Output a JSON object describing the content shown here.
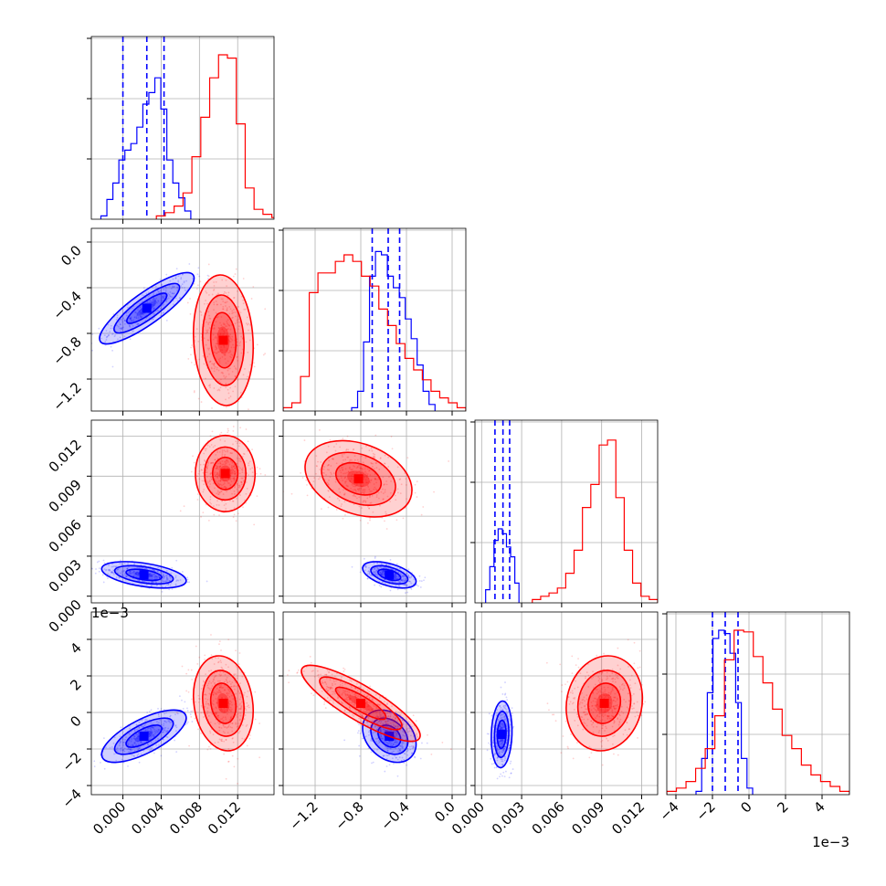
{
  "chart_data": {
    "type": "corner",
    "parameters": [
      {
        "ticks": [
          0.0,
          0.004,
          0.008,
          0.012
        ],
        "tick_labels": [
          "0.000",
          "0.004",
          "0.008",
          "0.012"
        ],
        "range": [
          -0.0033,
          0.0158
        ]
      },
      {
        "ticks": [
          -1.2,
          -0.8,
          -0.4,
          0.0
        ],
        "tick_labels": [
          "−1.2",
          "−0.8",
          "−0.4",
          "0.0"
        ],
        "range": [
          -1.48,
          0.12
        ]
      },
      {
        "ticks": [
          0.0,
          0.003,
          0.006,
          0.009,
          0.012
        ],
        "tick_labels": [
          "0.000",
          "0.003",
          "0.006",
          "0.009",
          "0.012"
        ],
        "range": [
          -0.0005,
          0.0132
        ]
      },
      {
        "ticks": [
          -4,
          -2,
          0,
          2,
          4
        ],
        "tick_labels": [
          "−4",
          "−2",
          "0",
          "2",
          "4"
        ],
        "range": [
          -4.5,
          5.5
        ],
        "offset_label": "1e−3"
      }
    ],
    "grid": true,
    "series": [
      {
        "color": "#0000ff",
        "quantiles": [
          [
            0.0,
            0.0025,
            0.0043
          ],
          [
            -0.7,
            -0.56,
            -0.46
          ],
          [
            0.001,
            0.0016,
            0.0021
          ],
          [
            -2.0,
            -1.3,
            -0.6
          ]
        ],
        "hist1d": [
          {
            "range": [
              -0.0023,
              0.0071
            ],
            "counts": [
              0.02,
              0.12,
              0.22,
              0.36,
              0.42,
              0.46,
              0.56,
              0.7,
              0.77,
              0.86,
              0.67,
              0.36,
              0.22,
              0.13,
              0.05
            ]
          },
          {
            "range": [
              -0.88,
              -0.15
            ],
            "counts": [
              0.02,
              0.12,
              0.42,
              0.82,
              0.97,
              0.95,
              0.82,
              0.75,
              0.69,
              0.56,
              0.44,
              0.28,
              0.12,
              0.04
            ]
          },
          {
            "range": [
              0.0003,
              0.0028
            ],
            "counts": [
              0.08,
              0.22,
              0.38,
              0.45,
              0.42,
              0.34,
              0.28,
              0.12
            ]
          },
          {
            "range": [
              -2.9,
              0.2
            ],
            "counts": [
              0.02,
              0.22,
              0.62,
              0.95,
              1.0,
              0.98,
              0.86,
              0.56,
              0.22,
              0.04
            ]
          }
        ],
        "blobs": [
          {
            "pair": [
              0,
              1
            ],
            "mean": [
              0.0025,
              -0.58
            ],
            "sd": [
              0.0019,
              0.12
            ],
            "rho": 0.85
          },
          {
            "pair": [
              0,
              2
            ],
            "mean": [
              0.0022,
              0.0016
            ],
            "sd": [
              0.0017,
              0.00038
            ],
            "rho": -0.45
          },
          {
            "pair": [
              0,
              3
            ],
            "mean": [
              0.0022,
              -1.3
            ],
            "sd": [
              0.0017,
              0.55
            ],
            "rho": 0.7
          },
          {
            "pair": [
              1,
              2
            ],
            "mean": [
              -0.55,
              0.0016
            ],
            "sd": [
              0.09,
              0.00038
            ],
            "rho": -0.5
          },
          {
            "pair": [
              1,
              3
            ],
            "mean": [
              -0.55,
              -1.3
            ],
            "sd": [
              0.09,
              0.55
            ],
            "rho": -0.3
          },
          {
            "pair": [
              2,
              3
            ],
            "mean": [
              0.0015,
              -1.2
            ],
            "sd": [
              0.0003,
              0.7
            ],
            "rho": 0.1
          }
        ]
      },
      {
        "color": "#ff0000",
        "hist1d": [
          {
            "range": [
              0.0035,
              0.0165
            ],
            "counts": [
              0.02,
              0.04,
              0.08,
              0.16,
              0.38,
              0.62,
              0.86,
              1.0,
              0.98,
              0.58,
              0.19,
              0.06,
              0.03,
              0.01
            ]
          },
          {
            "range": [
              -1.48,
              0.12
            ],
            "counts": [
              0.02,
              0.05,
              0.21,
              0.72,
              0.84,
              0.84,
              0.91,
              0.95,
              0.91,
              0.82,
              0.76,
              0.62,
              0.52,
              0.41,
              0.32,
              0.25,
              0.19,
              0.12,
              0.08,
              0.05,
              0.02
            ]
          },
          {
            "range": [
              0.0038,
              0.0132
            ],
            "counts": [
              0.02,
              0.04,
              0.06,
              0.09,
              0.18,
              0.32,
              0.58,
              0.72,
              0.96,
              0.99,
              0.64,
              0.32,
              0.12,
              0.04,
              0.02
            ]
          },
          {
            "range": [
              -4.5,
              5.5
            ],
            "counts": [
              0.02,
              0.04,
              0.08,
              0.16,
              0.28,
              0.48,
              0.82,
              1.0,
              0.99,
              0.84,
              0.68,
              0.52,
              0.36,
              0.28,
              0.18,
              0.12,
              0.08,
              0.05,
              0.02
            ]
          }
        ],
        "blobs": [
          {
            "pair": [
              0,
              1
            ],
            "mean": [
              0.0105,
              -0.86
            ],
            "sd": [
              0.0012,
              0.22
            ],
            "rho": -0.1
          },
          {
            "pair": [
              0,
              2
            ],
            "mean": [
              0.0107,
              0.0092
            ],
            "sd": [
              0.0012,
              0.0011
            ],
            "rho": 0.0
          },
          {
            "pair": [
              0,
              3
            ],
            "mean": [
              0.0105,
              0.5
            ],
            "sd": [
              0.0012,
              1.0
            ],
            "rho": -0.15
          },
          {
            "pair": [
              1,
              2
            ],
            "mean": [
              -0.82,
              0.0088
            ],
            "sd": [
              0.18,
              0.0011
            ],
            "rho": -0.3
          },
          {
            "pair": [
              1,
              3
            ],
            "mean": [
              -0.8,
              0.5
            ],
            "sd": [
              0.2,
              0.8
            ],
            "rho": -0.85
          },
          {
            "pair": [
              2,
              3
            ],
            "mean": [
              0.0092,
              0.5
            ],
            "sd": [
              0.0011,
              1.0
            ],
            "rho": 0.1
          }
        ]
      }
    ]
  }
}
